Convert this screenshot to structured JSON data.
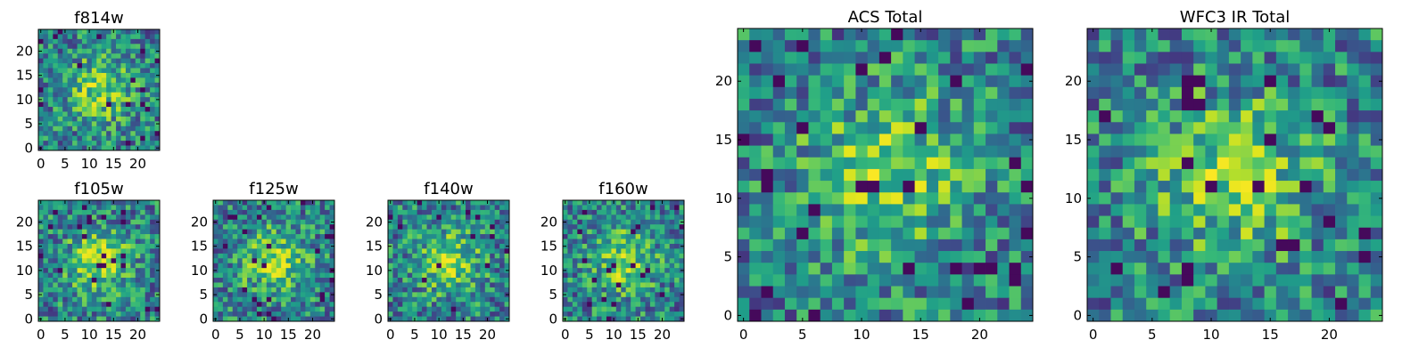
{
  "chart_data": [
    {
      "type": "heatmap",
      "title": "f814w",
      "xticks": [
        0,
        5,
        10,
        15,
        20
      ],
      "yticks": [
        0,
        5,
        10,
        15,
        20
      ],
      "xlim": [
        -0.5,
        24.5
      ],
      "ylim": [
        -0.5,
        24.5
      ],
      "grid_size": 25,
      "colormap": "viridis",
      "source_label": "f814w"
    },
    {
      "type": "heatmap",
      "title": "f105w",
      "xticks": [
        0,
        5,
        10,
        15,
        20
      ],
      "yticks": [
        0,
        5,
        10,
        15,
        20
      ],
      "xlim": [
        -0.5,
        24.5
      ],
      "ylim": [
        -0.5,
        24.5
      ],
      "grid_size": 25,
      "colormap": "viridis",
      "source_label": "f105w"
    },
    {
      "type": "heatmap",
      "title": "f125w",
      "xticks": [
        0,
        5,
        10,
        15,
        20
      ],
      "yticks": [
        0,
        5,
        10,
        15,
        20
      ],
      "xlim": [
        -0.5,
        24.5
      ],
      "ylim": [
        -0.5,
        24.5
      ],
      "grid_size": 25,
      "colormap": "viridis",
      "source_label": "f125w"
    },
    {
      "type": "heatmap",
      "title": "f140w",
      "xticks": [
        0,
        5,
        10,
        15,
        20
      ],
      "yticks": [
        0,
        5,
        10,
        15,
        20
      ],
      "xlim": [
        -0.5,
        24.5
      ],
      "ylim": [
        -0.5,
        24.5
      ],
      "grid_size": 25,
      "colormap": "viridis",
      "source_label": "f140w"
    },
    {
      "type": "heatmap",
      "title": "f160w",
      "xticks": [
        0,
        5,
        10,
        15,
        20
      ],
      "yticks": [
        0,
        5,
        10,
        15,
        20
      ],
      "xlim": [
        -0.5,
        24.5
      ],
      "ylim": [
        -0.5,
        24.5
      ],
      "grid_size": 25,
      "colormap": "viridis",
      "source_label": "f160w"
    },
    {
      "type": "heatmap",
      "title": "ACS Total",
      "xticks": [
        0,
        5,
        10,
        15,
        20
      ],
      "yticks": [
        0,
        5,
        10,
        15,
        20
      ],
      "xlim": [
        -0.5,
        24.5
      ],
      "ylim": [
        -0.5,
        24.5
      ],
      "grid_size": 25,
      "colormap": "viridis",
      "source_label": "ACS Total"
    },
    {
      "type": "heatmap",
      "title": "WFC3 IR Total",
      "xticks": [
        0,
        5,
        10,
        15,
        20
      ],
      "yticks": [
        0,
        5,
        10,
        15,
        20
      ],
      "xlim": [
        -0.5,
        24.5
      ],
      "ylim": [
        -0.5,
        24.5
      ],
      "grid_size": 25,
      "colormap": "viridis",
      "source_label": "WFC3 IR Total"
    }
  ],
  "colors": {
    "background": "#ffffff",
    "axis": "#000000",
    "viridis_low": "#440154",
    "viridis_mid": "#21918c",
    "viridis_high": "#fde725"
  }
}
